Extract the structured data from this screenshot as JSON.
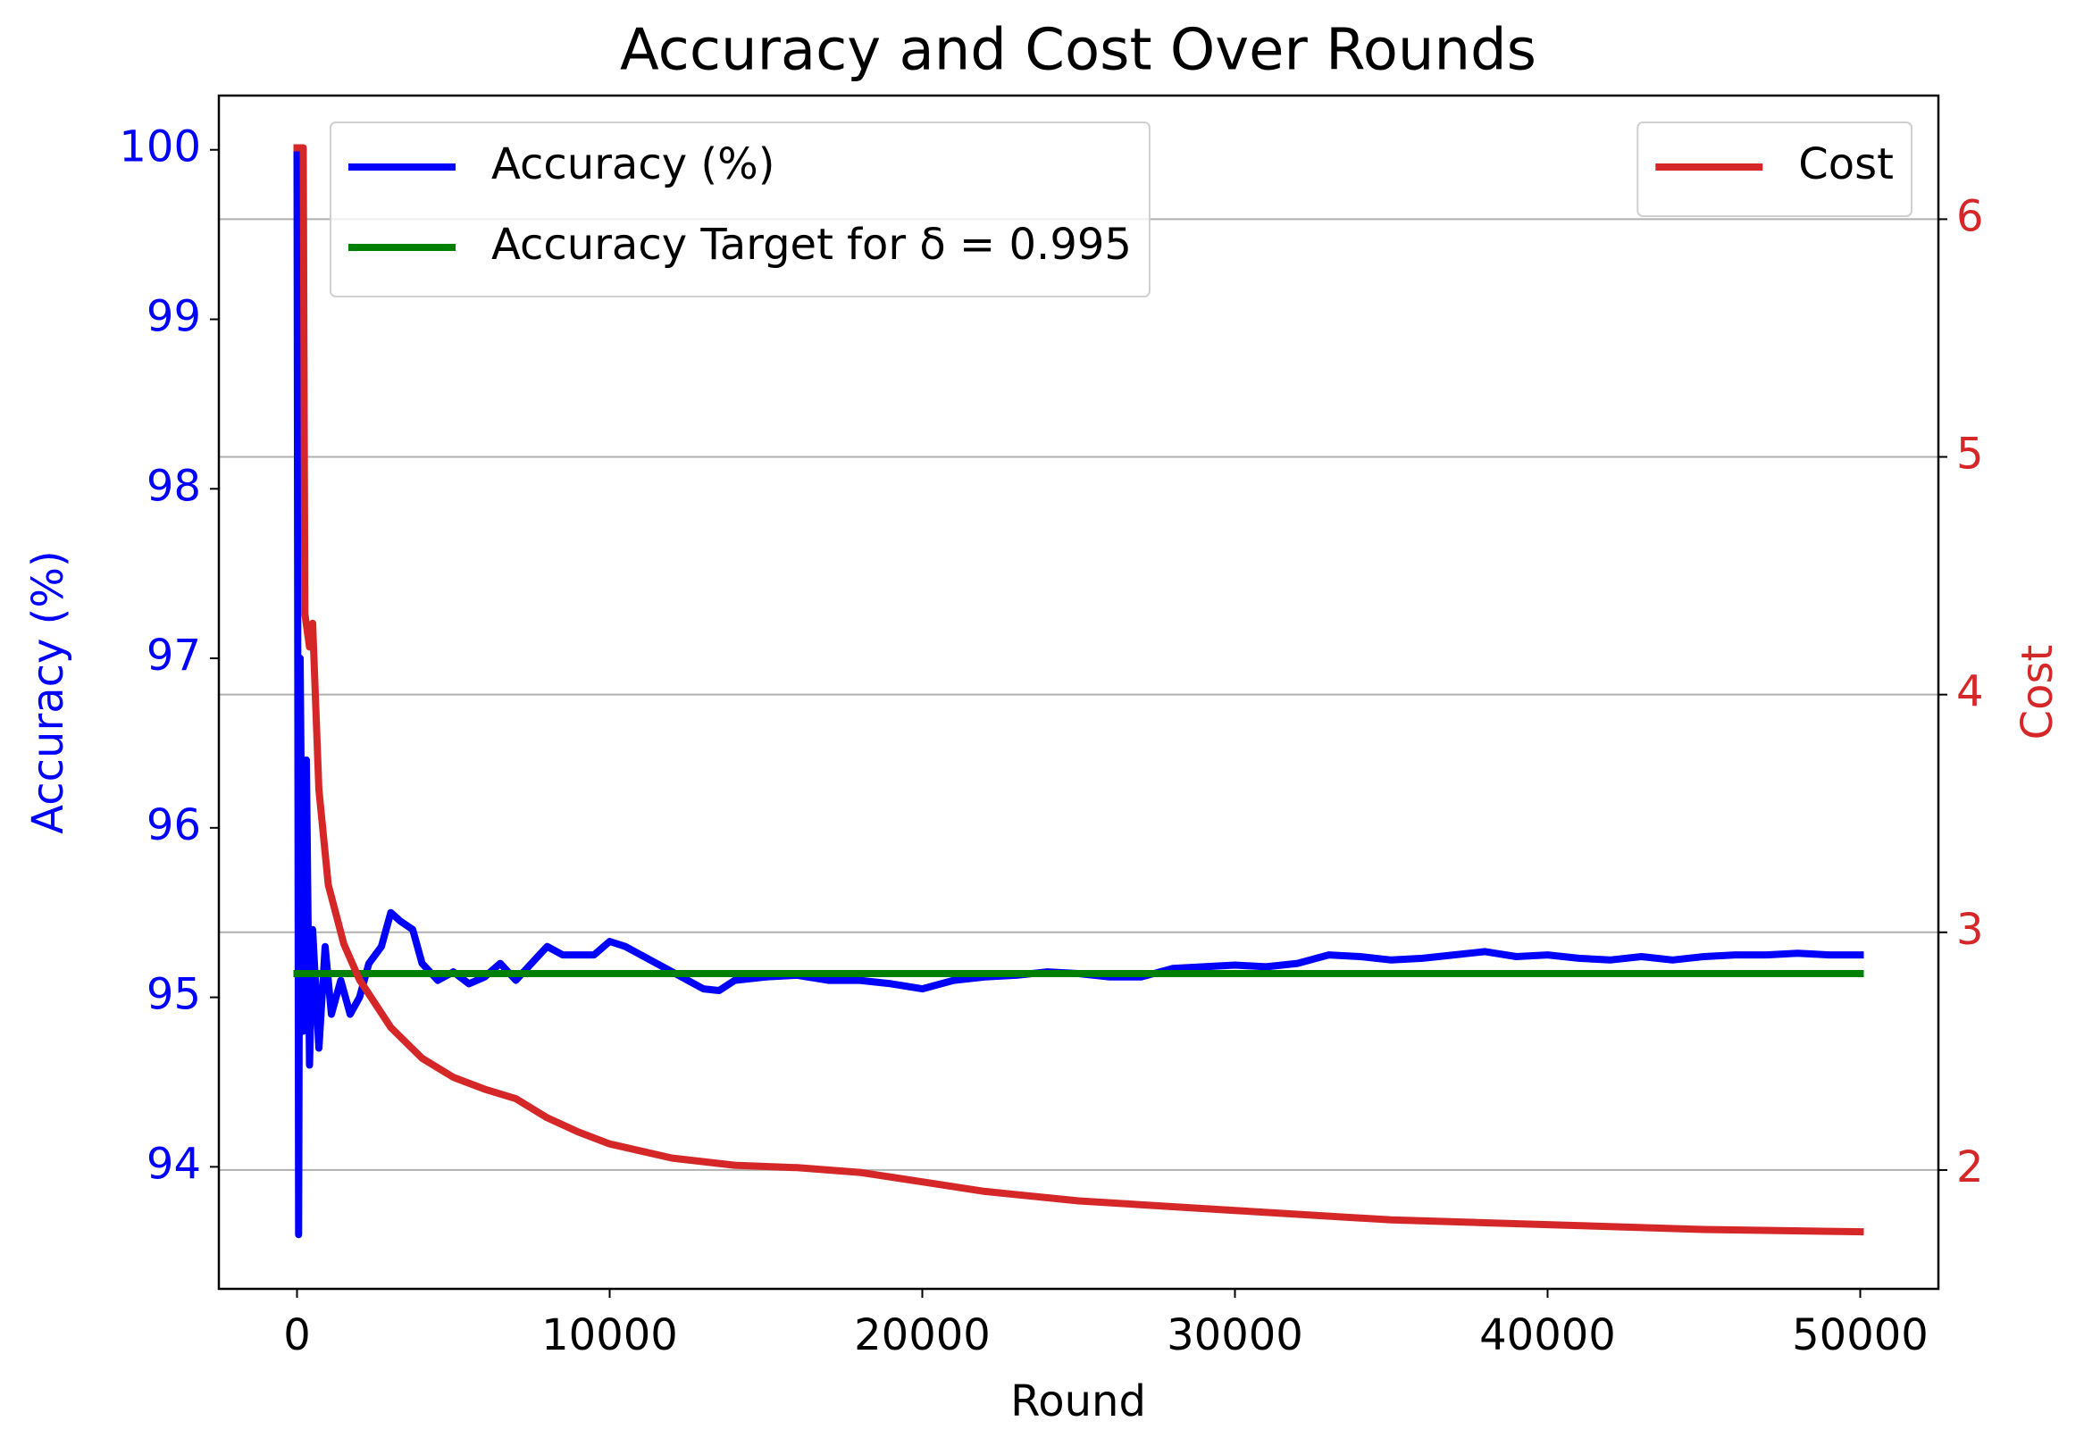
{
  "chart_data": {
    "type": "line",
    "title": "Accuracy and Cost Over Rounds",
    "xlabel": "Round",
    "ylabel": "Accuracy (%)",
    "y2label": "Cost",
    "xlim": [
      -2500,
      52500
    ],
    "xticks": [
      0,
      10000,
      20000,
      30000,
      40000,
      50000
    ],
    "ylim": [
      93.28,
      100.32
    ],
    "yticks": [
      94,
      95,
      96,
      97,
      98,
      99,
      100
    ],
    "y2lim": [
      1.5,
      6.52
    ],
    "y2ticks": [
      2,
      3,
      4,
      5,
      6
    ],
    "grid": "y2",
    "legend_loc": "upper left",
    "legend2_loc": "upper right",
    "series": [
      {
        "name": "Accuracy (%)",
        "color": "#0000ff",
        "x": [
          0,
          50,
          100,
          200,
          300,
          400,
          500,
          700,
          900,
          1100,
          1400,
          1700,
          2000,
          2300,
          2700,
          3000,
          3300,
          3700,
          4000,
          4500,
          5000,
          5500,
          6000,
          6500,
          7000,
          7500,
          8000,
          8500,
          9000,
          9500,
          10000,
          10500,
          11000,
          11500,
          12000,
          12500,
          13000,
          13500,
          14000,
          15000,
          16000,
          17000,
          18000,
          19000,
          20000,
          21000,
          22000,
          23000,
          24000,
          25000,
          26000,
          27000,
          28000,
          29000,
          30000,
          31000,
          32000,
          33000,
          34000,
          35000,
          36000,
          37000,
          38000,
          39000,
          40000,
          41000,
          42000,
          43000,
          44000,
          45000,
          46000,
          47000,
          48000,
          49000,
          49999
        ],
        "values": [
          100,
          93.6,
          97,
          94.8,
          96.4,
          94.6,
          95.4,
          94.7,
          95.3,
          94.9,
          95.1,
          94.9,
          95.0,
          95.2,
          95.3,
          95.5,
          95.45,
          95.4,
          95.2,
          95.1,
          95.15,
          95.08,
          95.12,
          95.2,
          95.1,
          95.2,
          95.3,
          95.25,
          95.25,
          95.25,
          95.33,
          95.3,
          95.25,
          95.2,
          95.15,
          95.1,
          95.05,
          95.04,
          95.1,
          95.12,
          95.13,
          95.1,
          95.1,
          95.08,
          95.05,
          95.1,
          95.12,
          95.13,
          95.15,
          95.14,
          95.12,
          95.12,
          95.17,
          95.18,
          95.19,
          95.18,
          95.2,
          95.25,
          95.24,
          95.22,
          95.23,
          95.25,
          95.27,
          95.24,
          95.25,
          95.23,
          95.22,
          95.24,
          95.22,
          95.24,
          95.25,
          95.25,
          95.26,
          95.25,
          95.25
        ]
      },
      {
        "name": "Accuracy Target for δ = 0.995",
        "color": "#008000",
        "x": [
          0,
          49999
        ],
        "values": [
          95.14,
          95.14
        ]
      },
      {
        "name": "Cost",
        "color": "#d62728",
        "axis": "y2",
        "x": [
          0,
          200,
          250,
          400,
          500,
          700,
          1000,
          1500,
          2000,
          3000,
          4000,
          5000,
          6000,
          7000,
          8000,
          9000,
          10000,
          12000,
          14000,
          16000,
          18000,
          20000,
          22000,
          25000,
          30000,
          35000,
          40000,
          45000,
          49999
        ],
        "values": [
          6.3,
          6.3,
          4.34,
          4.2,
          4.3,
          3.6,
          3.2,
          2.95,
          2.8,
          2.6,
          2.47,
          2.39,
          2.34,
          2.3,
          2.22,
          2.16,
          2.11,
          2.05,
          2.02,
          2.01,
          1.99,
          1.95,
          1.91,
          1.87,
          1.83,
          1.79,
          1.77,
          1.75,
          1.74
        ]
      }
    ]
  }
}
